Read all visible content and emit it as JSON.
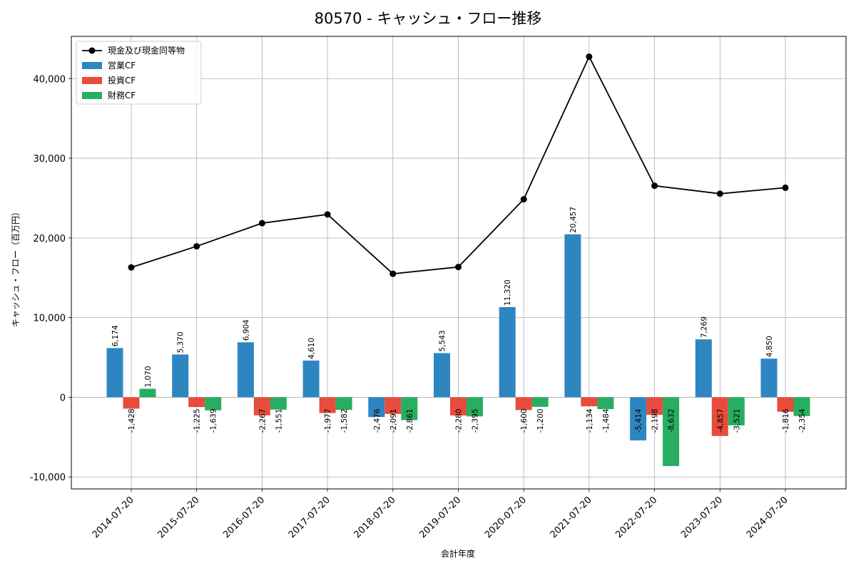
{
  "chart_data": {
    "type": "bar",
    "title": "80570 - キャッシュ・フロー推移",
    "xlabel": "会計年度",
    "ylabel": "キャッシュ・フロー（百万円）",
    "ylim": [
      -11500,
      45300
    ],
    "yticks": [
      -10000,
      0,
      10000,
      20000,
      30000,
      40000
    ],
    "ytick_labels": [
      "-10,000",
      "0",
      "10,000",
      "20,000",
      "30,000",
      "40,000"
    ],
    "grid": true,
    "legend_position": "top-left",
    "categories": [
      "2014-07-20",
      "2015-07-20",
      "2016-07-20",
      "2017-07-20",
      "2018-07-20",
      "2019-07-20",
      "2020-07-20",
      "2021-07-20",
      "2022-07-20",
      "2023-07-20",
      "2024-07-20"
    ],
    "series": [
      {
        "name": "営業CF",
        "kind": "bar",
        "color": "#2e86c1",
        "values": [
          6174,
          5370,
          6904,
          4610,
          -2476,
          5543,
          11320,
          20457,
          -5414,
          7269,
          4850
        ],
        "labels": [
          "6,174",
          "5,370",
          "6,904",
          "4,610",
          "-2,476",
          "5,543",
          "11,320",
          "20,457",
          "-5,414",
          "7,269",
          "4,850"
        ]
      },
      {
        "name": "投資CF",
        "kind": "bar",
        "color": "#e74c3c",
        "values": [
          -1428,
          -1225,
          -2267,
          -1977,
          -2091,
          -2280,
          -1600,
          -1134,
          -2198,
          -4857,
          -1816
        ],
        "labels": [
          "-1,428",
          "-1,225",
          "-2,267",
          "-1,977",
          "-2,091",
          "-2,280",
          "-1,600",
          "-1,134",
          "-2,198",
          "-4,857",
          "-1,816"
        ]
      },
      {
        "name": "財務CF",
        "kind": "bar",
        "color": "#27ae60",
        "values": [
          1070,
          -1639,
          -1551,
          -1582,
          -2861,
          -2395,
          -1200,
          -1484,
          -8632,
          -3521,
          -2354
        ],
        "labels": [
          "1,070",
          "-1,639",
          "-1,551",
          "-1,582",
          "-2,861",
          "-2,395",
          "-1,200",
          "-1,484",
          "-8,632",
          "-3,521",
          "-2,354"
        ]
      },
      {
        "name": "現金及び現金同等物",
        "kind": "line",
        "color": "#000000",
        "values": [
          16300,
          18950,
          21850,
          22950,
          15500,
          16350,
          24850,
          42750,
          26550,
          25550,
          26300
        ]
      }
    ]
  }
}
